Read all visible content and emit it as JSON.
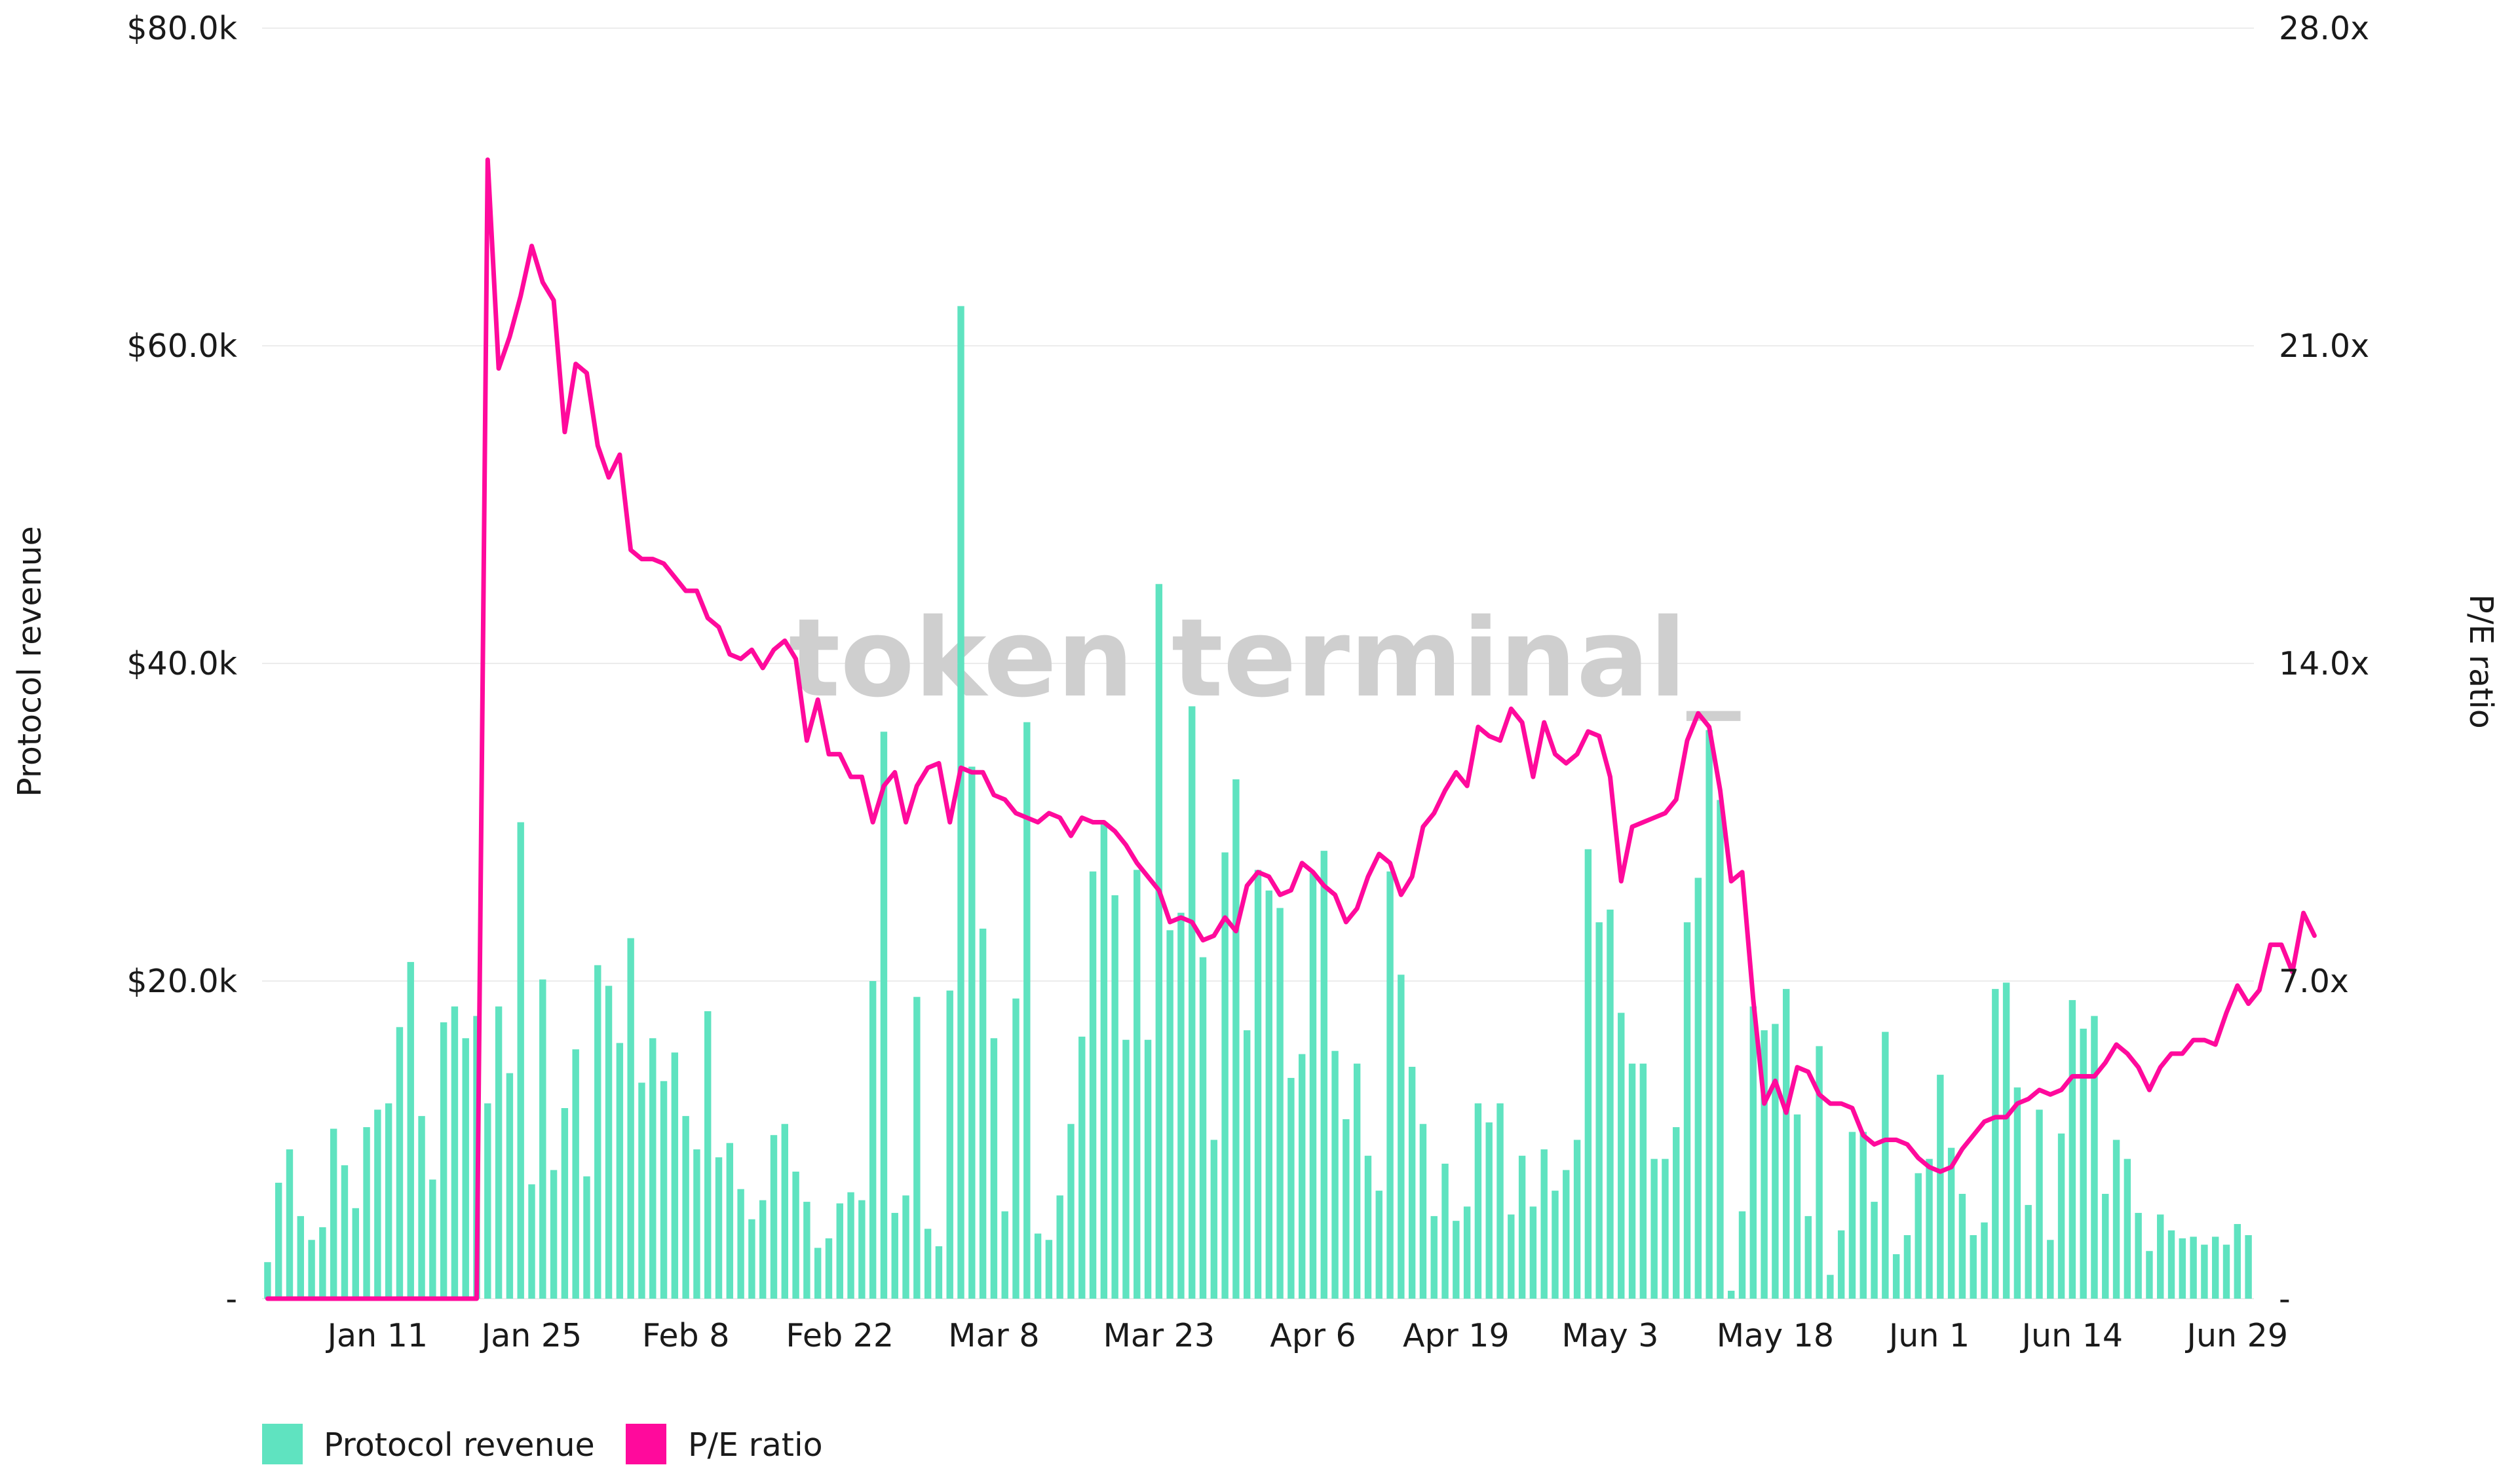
{
  "watermark": "token terminal_",
  "legend": [
    {
      "label": "Protocol revenue",
      "color": "#5fe3c0"
    },
    {
      "label": "P/E ratio",
      "color": "#ff0a9c"
    }
  ],
  "chart_data": {
    "type": "bar+line",
    "x_tick_labels": [
      "Jan 11",
      "Jan 25",
      "Feb 8",
      "Feb 22",
      "Mar 8",
      "Mar 23",
      "Apr 6",
      "Apr 19",
      "May 3",
      "May 18",
      "Jun 1",
      "Jun 14",
      "Jun 29"
    ],
    "x_tick_index": [
      10,
      24,
      38,
      52,
      66,
      81,
      95,
      108,
      122,
      137,
      151,
      164,
      179
    ],
    "y_left": {
      "label": "Protocol revenue",
      "range": [
        0,
        80000
      ],
      "ticks": [
        0,
        20000,
        40000,
        60000,
        80000
      ],
      "tick_labels": [
        "-",
        "$20.0k",
        "$40.0k",
        "$60.0k",
        "$80.0k"
      ]
    },
    "y_right": {
      "label": "P/E ratio",
      "range": [
        0,
        28
      ],
      "ticks": [
        0,
        7,
        14,
        21,
        28
      ],
      "tick_labels": [
        "-",
        "7.0x",
        "14.0x",
        "21.0x",
        "28.0x"
      ]
    },
    "grid": "horizontal",
    "legend_position": "bottom-left",
    "series": [
      {
        "name": "Protocol revenue",
        "type": "bar",
        "color": "#5fe3c0",
        "values": [
          2300,
          7300,
          9400,
          5200,
          3700,
          4500,
          10700,
          8400,
          5700,
          10800,
          11900,
          12300,
          17100,
          21200,
          11500,
          7500,
          17400,
          18400,
          16400,
          17800,
          12300,
          18400,
          14200,
          30000,
          7200,
          20100,
          8100,
          12000,
          15700,
          7700,
          21000,
          19700,
          16100,
          22700,
          13600,
          16400,
          13700,
          15500,
          11500,
          9400,
          18100,
          8900,
          9800,
          6900,
          5000,
          6200,
          10300,
          11000,
          8000,
          6100,
          3200,
          3800,
          6000,
          6700,
          6200,
          20000,
          35700,
          5400,
          6500,
          19000,
          4400,
          3300,
          19400,
          62500,
          33500,
          23300,
          16400,
          5500,
          18900,
          36300,
          4100,
          3700,
          6500,
          11000,
          16500,
          26900,
          29900,
          25400,
          16300,
          27000,
          16300,
          45000,
          23200,
          24300,
          37300,
          21500,
          10000,
          28100,
          32700,
          16900,
          27000,
          25700,
          24600,
          13900,
          15400,
          26800,
          28200,
          15600,
          11300,
          14800,
          9000,
          6800,
          26900,
          20400,
          14600,
          11000,
          5200,
          8500,
          4900,
          5800,
          12300,
          11100,
          12300,
          5300,
          9000,
          5800,
          9400,
          6800,
          8100,
          10000,
          28300,
          23700,
          24500,
          18000,
          14800,
          14800,
          8800,
          8800,
          10800,
          23700,
          26500,
          35800,
          31400,
          500,
          5500,
          18400,
          16900,
          17300,
          19500,
          11600,
          5200,
          15900,
          1500,
          4300,
          10500,
          10500,
          6100,
          16800,
          2800,
          4000,
          7900,
          8800,
          14100,
          9500,
          6600,
          4000,
          4800,
          19500,
          19900,
          13300,
          5900,
          11900,
          3700,
          10400,
          18800,
          17000,
          17800,
          6600,
          10000,
          8800,
          5400,
          3000,
          5300,
          4300,
          3800,
          3900,
          3400,
          3900,
          3400,
          4700,
          4000
        ]
      },
      {
        "name": "P/E ratio",
        "type": "line",
        "color": "#ff0a9c",
        "values": [
          0,
          0,
          0,
          0,
          0,
          0,
          0,
          0,
          0,
          0,
          0,
          0,
          0,
          0,
          0,
          0,
          0,
          0,
          0,
          0,
          25.1,
          20.5,
          21.2,
          22.1,
          23.2,
          22.4,
          22.0,
          19.1,
          20.6,
          20.4,
          18.8,
          18.1,
          18.6,
          16.5,
          16.3,
          16.3,
          16.2,
          15.9,
          15.6,
          15.6,
          15.0,
          14.8,
          14.2,
          14.1,
          14.3,
          13.9,
          14.3,
          14.5,
          14.1,
          12.3,
          13.2,
          12.0,
          12.0,
          11.5,
          11.5,
          10.5,
          11.3,
          11.6,
          10.5,
          11.3,
          11.7,
          11.8,
          10.5,
          11.7,
          11.6,
          11.6,
          11.1,
          11.0,
          10.7,
          10.6,
          10.5,
          10.7,
          10.6,
          10.2,
          10.6,
          10.5,
          10.5,
          10.3,
          10.0,
          9.6,
          9.3,
          9.0,
          8.3,
          8.4,
          8.3,
          7.9,
          8.0,
          8.4,
          8.1,
          9.1,
          9.4,
          9.3,
          8.9,
          9.0,
          9.6,
          9.4,
          9.1,
          8.9,
          8.3,
          8.6,
          9.3,
          9.8,
          9.6,
          8.9,
          9.3,
          10.4,
          10.7,
          11.2,
          11.6,
          11.3,
          12.6,
          12.4,
          12.3,
          13.0,
          12.7,
          11.5,
          12.7,
          12.0,
          11.8,
          12.0,
          12.5,
          12.4,
          11.5,
          9.2,
          10.4,
          10.5,
          10.6,
          10.7,
          11.0,
          12.3,
          12.9,
          12.6,
          11.2,
          9.2,
          9.4,
          6.6,
          4.3,
          4.8,
          4.1,
          5.1,
          5.0,
          4.5,
          4.3,
          4.3,
          4.2,
          3.6,
          3.4,
          3.5,
          3.5,
          3.4,
          3.1,
          2.9,
          2.8,
          2.9,
          3.3,
          3.6,
          3.9,
          4.0,
          4.0,
          4.3,
          4.4,
          4.6,
          4.5,
          4.6,
          4.9,
          4.9,
          4.9,
          5.2,
          5.6,
          5.4,
          5.1,
          4.6,
          5.1,
          5.4,
          5.4,
          5.7,
          5.7,
          5.6,
          6.3,
          6.9,
          6.5,
          6.8,
          7.8,
          7.8,
          7.2,
          8.5,
          8.0
        ]
      }
    ]
  }
}
